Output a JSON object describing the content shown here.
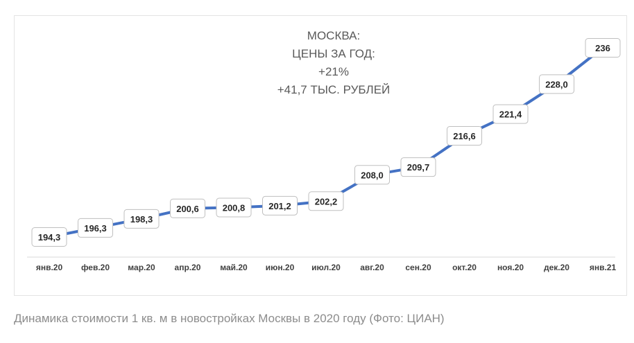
{
  "chart_data": {
    "type": "line",
    "title_lines": [
      "МОСКВА:",
      "ЦЕНЫ ЗА ГОД:",
      "+21%",
      "+41,7 ТЫС. РУБЛЕЙ"
    ],
    "categories": [
      "янв.20",
      "фев.20",
      "мар.20",
      "апр.20",
      "май.20",
      "июн.20",
      "июл.20",
      "авг.20",
      "сен.20",
      "окт.20",
      "ноя.20",
      "дек.20",
      "янв.21"
    ],
    "values": [
      194.3,
      196.3,
      198.3,
      200.6,
      200.8,
      201.2,
      202.2,
      208.0,
      209.7,
      216.6,
      221.4,
      228.0,
      236
    ],
    "labels": [
      "194,3",
      "196,3",
      "198,3",
      "200,6",
      "200,8",
      "201,2",
      "202,2",
      "208,0",
      "209,7",
      "216,6",
      "221,4",
      "228,0",
      "236"
    ],
    "ylim": [
      190,
      240
    ],
    "grid": false,
    "legend": "none",
    "line_color": "#4472c4"
  },
  "caption": "Динамика стоимости 1 кв. м в новостройках Москвы в 2020 году  (Фото: ЦИАН)"
}
